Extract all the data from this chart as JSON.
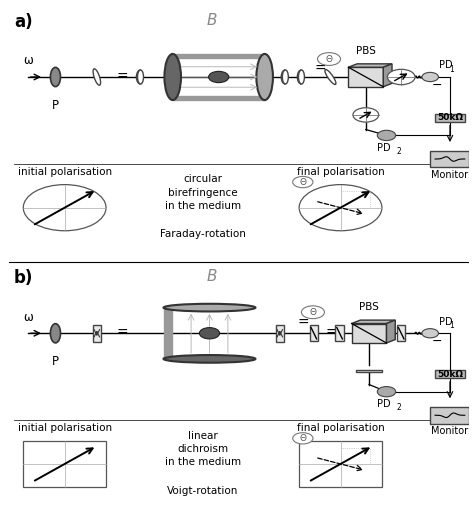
{
  "bg_color": "#ffffff",
  "panel_a_label": "a)",
  "panel_b_label": "b)",
  "B_label": "B",
  "P_label": "P",
  "PBS_label": "PBS",
  "omega_label": "ω",
  "Theta_label": "Θ",
  "res_label": "50kΩ",
  "monitor_label": "Monitor",
  "panel_a_text1": "initial polarisation",
  "panel_a_text2": "circular\nbirefringence\nin the medium",
  "panel_a_text3": "Faraday-rotation",
  "panel_a_text4": "final polarisation",
  "panel_b_text1": "initial polarisation",
  "panel_b_text2": "linear\ndichroism\nin the medium",
  "panel_b_text3": "Voigt-rotation",
  "panel_b_text4": "final polarisation",
  "gray1": "#777777",
  "gray2": "#aaaaaa",
  "gray3": "#cccccc",
  "gray4": "#dddddd",
  "gray5": "#eeeeee",
  "dark": "#333333",
  "mid": "#555555"
}
